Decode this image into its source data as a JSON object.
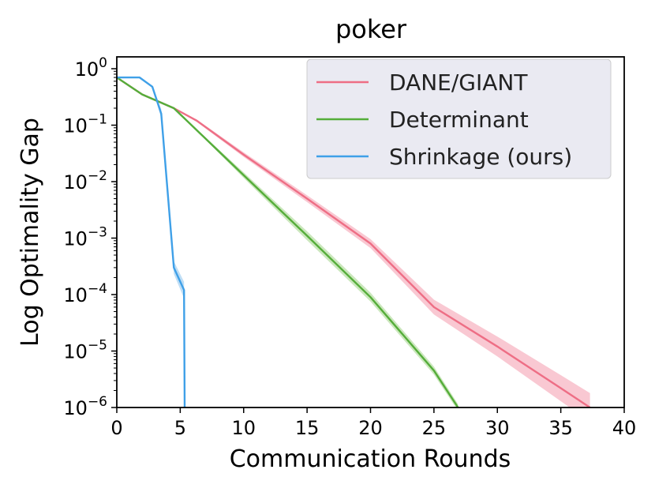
{
  "chart_data": {
    "type": "line",
    "title": "poker",
    "xlabel": "Communication Rounds",
    "ylabel": "Log Optimality Gap",
    "xlim": [
      0,
      40
    ],
    "ylim": [
      1e-06,
      2
    ],
    "yscale": "log",
    "x_ticks": [
      0,
      5,
      10,
      15,
      20,
      25,
      30,
      35,
      40
    ],
    "y_ticks": [
      {
        "value": 1,
        "base": "10",
        "exp": "0"
      },
      {
        "value": 0.1,
        "base": "10",
        "exp": "−1"
      },
      {
        "value": 0.01,
        "base": "10",
        "exp": "−2"
      },
      {
        "value": 0.001,
        "base": "10",
        "exp": "−3"
      },
      {
        "value": 0.0001,
        "base": "10",
        "exp": "−4"
      },
      {
        "value": 1e-05,
        "base": "10",
        "exp": "−5"
      },
      {
        "value": 1e-06,
        "base": "10",
        "exp": "−6"
      }
    ],
    "grid": false,
    "legend_position": "top-right",
    "series": [
      {
        "name": "DANE/GIANT",
        "color": "#ee6e85",
        "band_color": "#f7b5c3",
        "x": [
          0,
          2,
          4.5,
          6.3,
          10,
          15,
          20,
          25,
          30,
          35,
          37.3
        ],
        "y": [
          0.7,
          0.35,
          0.2,
          0.12,
          0.03,
          0.005,
          0.0008,
          6e-05,
          1.2e-05,
          2.2e-06,
          1e-06
        ],
        "band_factor": [
          1,
          1,
          1,
          1.05,
          1.1,
          1.15,
          1.2,
          1.35,
          1.5,
          1.7,
          1.8
        ]
      },
      {
        "name": "Determinant",
        "color": "#55ad3a",
        "band_color": "#b9dfa7",
        "x": [
          0,
          2,
          4.5,
          10,
          15,
          20,
          25,
          26.9
        ],
        "y": [
          0.7,
          0.35,
          0.2,
          0.013,
          0.0011,
          9e-05,
          4.5e-06,
          1e-06
        ],
        "band_factor": [
          1,
          1,
          1,
          1.12,
          1.2,
          1.2,
          1.18,
          1.15
        ]
      },
      {
        "name": "Shrinkage (ours)",
        "color": "#3fa0e8",
        "band_color": "#a9d3f2",
        "x": [
          0,
          1.8,
          2.8,
          3.5,
          4.5,
          5.3,
          5.35
        ],
        "y": [
          0.7,
          0.7,
          0.48,
          0.16,
          0.0003,
          0.00012,
          1e-06
        ],
        "band_factor": [
          1,
          1,
          1.05,
          1.2,
          1.3,
          1.4,
          1.4
        ]
      }
    ]
  }
}
